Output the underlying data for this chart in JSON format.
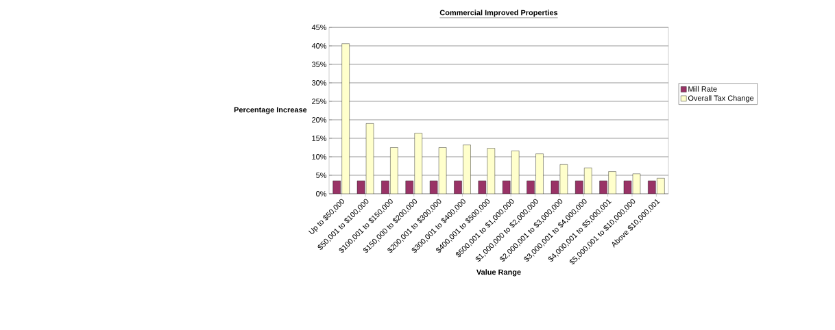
{
  "chart_data": {
    "type": "bar",
    "title": "Commercial Improved Properties",
    "xlabel": "Value Range",
    "ylabel": "Percentage Increase",
    "categories": [
      "Up to $50,000",
      "$50,001 to $100,000",
      "$100,001 to $150,000",
      "$150,000 to $200,000",
      "$200,001 to $300,000",
      "$300,001 to $400,000",
      "$400,001 to $500,000",
      "$500,001 to $1,000,000",
      "$1,000,000 to $2,000,000",
      "$2,000,001 to $3,000,000",
      "$3,000,001 to $4,000,000",
      "$4,000,001 to $5,000,001",
      "$5,000,001 to $10,000,000",
      "Above $10,000,001"
    ],
    "series": [
      {
        "name": "Mill Rate",
        "color": "#993366",
        "values": [
          3.5,
          3.5,
          3.5,
          3.5,
          3.5,
          3.5,
          3.5,
          3.5,
          3.5,
          3.5,
          3.5,
          3.5,
          3.5,
          3.5
        ]
      },
      {
        "name": "Overall Tax Change",
        "color": "#ffffcc",
        "values": [
          40.6,
          19.0,
          12.5,
          16.4,
          12.5,
          13.2,
          12.3,
          11.6,
          10.8,
          7.9,
          7.0,
          6.0,
          5.4,
          4.2
        ]
      }
    ],
    "ylim": [
      0,
      45
    ],
    "yticks": [
      {
        "value": 0,
        "label": "0%"
      },
      {
        "value": 5,
        "label": "5%"
      },
      {
        "value": 10,
        "label": "10%"
      },
      {
        "value": 15,
        "label": "15%"
      },
      {
        "value": 20,
        "label": "20%"
      },
      {
        "value": 25,
        "label": "25%"
      },
      {
        "value": 30,
        "label": "30%"
      },
      {
        "value": 35,
        "label": "35%"
      },
      {
        "value": 40,
        "label": "40%"
      },
      {
        "value": 45,
        "label": "45%"
      }
    ],
    "grid": "y",
    "legend": "right"
  }
}
